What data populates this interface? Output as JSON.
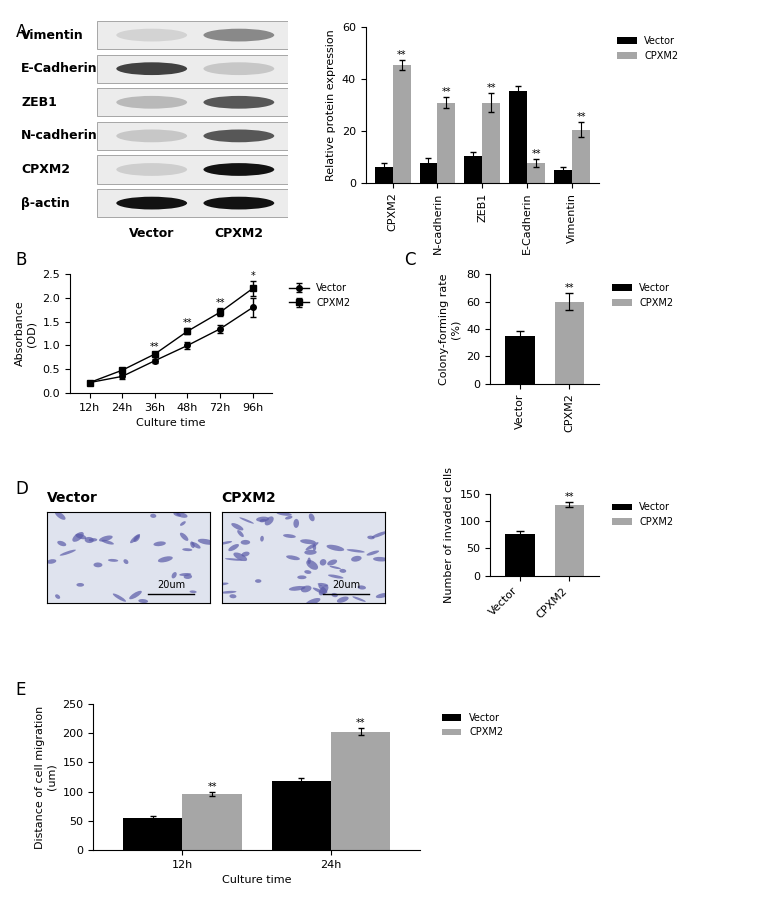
{
  "panel_labels": [
    "A",
    "B",
    "C",
    "D",
    "E"
  ],
  "blot": {
    "rows": [
      "Vimentin",
      "E-Cadherin",
      "ZEB1",
      "N-cadherin",
      "CPXM2",
      "β-actin"
    ],
    "lanes": [
      "Vector",
      "CPXM2"
    ]
  },
  "micrographs": {
    "titles": [
      "Vector",
      "CPXM2"
    ],
    "scale_bar": "20um"
  },
  "chart_data": [
    {
      "type": "bar",
      "y_label": "Relative protein expression",
      "categories": [
        "CPXM2",
        "N-cadherin",
        "ZEB1",
        "E-Cadherin",
        "Vimentin"
      ],
      "series": [
        {
          "name": "Vector",
          "color": "#000000",
          "values": [
            6,
            7.5,
            10.5,
            35.5,
            5
          ],
          "errors": [
            1.5,
            2,
            1.5,
            2,
            1
          ]
        },
        {
          "name": "CPXM2",
          "color": "#a6a6a6",
          "values": [
            45.5,
            31,
            31,
            7.5,
            20.5
          ],
          "errors": [
            2,
            2,
            3.5,
            1.5,
            3
          ],
          "significance": [
            "**",
            "**",
            "**",
            "**",
            "**"
          ]
        }
      ],
      "ylim": [
        0,
        60
      ],
      "yticks": [
        0,
        20,
        40,
        60
      ],
      "legend": "upper left"
    },
    {
      "type": "line",
      "x_label": "Culture time",
      "y_label": "Absorbance\n(OD)",
      "categories": [
        "12h",
        "24h",
        "36h",
        "48h",
        "72h",
        "96h"
      ],
      "series": [
        {
          "name": "Vector",
          "color": "#000000",
          "marker": "o",
          "values": [
            0.22,
            0.35,
            0.68,
            1.0,
            1.35,
            1.8
          ],
          "errors": [
            0.02,
            0.05,
            0.04,
            0.08,
            0.08,
            0.2
          ]
        },
        {
          "name": "CPXM2",
          "color": "#000000",
          "marker": "s",
          "values": [
            0.22,
            0.48,
            0.82,
            1.3,
            1.7,
            2.2
          ],
          "errors": [
            0.02,
            0.04,
            0.04,
            0.06,
            0.08,
            0.15
          ],
          "significance": [
            null,
            null,
            "**",
            "**",
            "**",
            "*"
          ]
        }
      ],
      "ylim": [
        0,
        2.5
      ],
      "yticks": [
        {
          "value": 0,
          "label": "0.0"
        },
        0.5,
        {
          "value": 1,
          "label": "1.0"
        },
        1.5,
        {
          "value": 2,
          "label": "2.0"
        },
        2.5
      ],
      "legend": "upper left"
    },
    {
      "type": "bar",
      "y_label": "Colony-forming rate\n(%)",
      "categories": [
        "Vector",
        "CPXM2"
      ],
      "values": [
        35,
        60
      ],
      "errors": [
        3.5,
        6
      ],
      "colors": [
        "#000000",
        "#a6a6a6"
      ],
      "significance": [
        null,
        "**"
      ],
      "ylim": [
        0,
        80
      ],
      "yticks": [
        0,
        20,
        40,
        60,
        80
      ],
      "legend": "upper left"
    },
    {
      "type": "bar",
      "y_label": "Number of invaded cells",
      "categories": [
        "Vector",
        "CPXM2"
      ],
      "values": [
        77,
        130
      ],
      "errors": [
        4,
        4
      ],
      "colors": [
        "#000000",
        "#a6a6a6"
      ],
      "significance": [
        null,
        "**"
      ],
      "ylim": [
        0,
        150
      ],
      "yticks": [
        0,
        50,
        100,
        150
      ],
      "legend": "upper left"
    },
    {
      "type": "bar",
      "x_label": "Culture time",
      "y_label": "Distance of cell migration\n(um)",
      "categories": [
        "12h",
        "24h"
      ],
      "series": [
        {
          "name": "Vector",
          "color": "#000000",
          "values": [
            55,
            118
          ],
          "errors": [
            4,
            5
          ]
        },
        {
          "name": "CPXM2",
          "color": "#a6a6a6",
          "values": [
            96,
            202
          ],
          "errors": [
            3,
            6
          ],
          "significance": [
            "**",
            "**"
          ]
        }
      ],
      "ylim": [
        0,
        250
      ],
      "yticks": [
        0,
        50,
        100,
        150,
        200,
        250
      ],
      "legend": "upper left"
    }
  ]
}
